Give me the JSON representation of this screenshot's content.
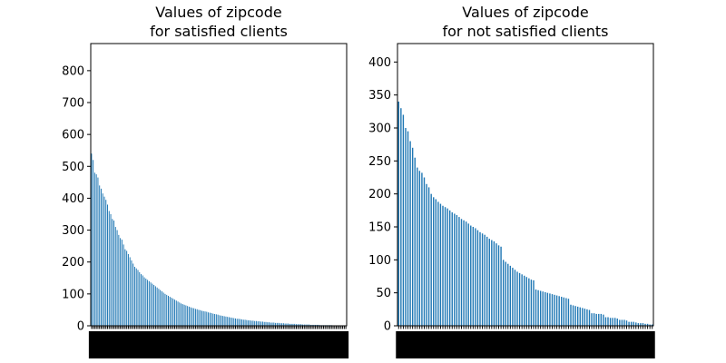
{
  "chart_data": [
    {
      "type": "bar",
      "title_line1": "Values of zipcode",
      "title_line2": "for satisfied clients",
      "ylim": [
        0,
        885
      ],
      "yticks": [
        0,
        100,
        200,
        300,
        400,
        500,
        600,
        700,
        800
      ],
      "ytick_labels": [
        "0",
        "100",
        "200",
        "300",
        "400",
        "500",
        "600",
        "700",
        "800"
      ],
      "xlabel": "",
      "ylabel": "",
      "grid": false,
      "legend": "none",
      "bar_color": "#1f77b4",
      "category_labels_legible": false,
      "categories_count": 160,
      "values": [
        540,
        520,
        480,
        475,
        465,
        440,
        430,
        415,
        405,
        395,
        380,
        360,
        350,
        335,
        330,
        310,
        300,
        285,
        275,
        270,
        255,
        240,
        235,
        225,
        215,
        205,
        195,
        185,
        180,
        175,
        168,
        162,
        158,
        152,
        148,
        144,
        140,
        136,
        132,
        128,
        124,
        120,
        116,
        112,
        108,
        104,
        100,
        97,
        94,
        91,
        88,
        85,
        82,
        79,
        76,
        73,
        70,
        68,
        66,
        64,
        62,
        60,
        58,
        56,
        55,
        53,
        52,
        50,
        49,
        47,
        46,
        45,
        44,
        42,
        41,
        40,
        38,
        37,
        36,
        35,
        33,
        32,
        31,
        30,
        29,
        28,
        27,
        26,
        25,
        24,
        23,
        22,
        22,
        21,
        20,
        19,
        19,
        18,
        17,
        17,
        16,
        16,
        15,
        15,
        14,
        14,
        13,
        13,
        12,
        12,
        11,
        11,
        10,
        10,
        10,
        9,
        9,
        9,
        8,
        8,
        8,
        7,
        7,
        7,
        6,
        6,
        6,
        6,
        5,
        5,
        5,
        5,
        4,
        4,
        4,
        4,
        4,
        3,
        3,
        3,
        3,
        3,
        3,
        2,
        2,
        2,
        2,
        2,
        2,
        2,
        2,
        1,
        1,
        1,
        1,
        1,
        1,
        1,
        1,
        1
      ]
    },
    {
      "type": "bar",
      "title_line1": "Values of zipcode",
      "title_line2": "for not satisfied clients",
      "ylim": [
        0,
        428
      ],
      "yticks": [
        0,
        50,
        100,
        150,
        200,
        250,
        300,
        350,
        400
      ],
      "ytick_labels": [
        "0",
        "50",
        "100",
        "150",
        "200",
        "250",
        "300",
        "350",
        "400"
      ],
      "xlabel": "",
      "ylabel": "",
      "grid": false,
      "legend": "none",
      "bar_color": "#1f77b4",
      "category_labels_legible": false,
      "categories_count": 110,
      "values": [
        340,
        330,
        320,
        300,
        295,
        280,
        270,
        255,
        240,
        235,
        232,
        225,
        215,
        210,
        200,
        195,
        192,
        188,
        185,
        182,
        180,
        178,
        175,
        172,
        170,
        168,
        165,
        162,
        160,
        158,
        155,
        152,
        150,
        148,
        145,
        142,
        140,
        138,
        135,
        132,
        130,
        128,
        125,
        122,
        120,
        100,
        97,
        94,
        91,
        88,
        85,
        82,
        80,
        78,
        76,
        74,
        72,
        70,
        69,
        55,
        54,
        53,
        52,
        51,
        50,
        49,
        48,
        47,
        46,
        45,
        44,
        43,
        42,
        41,
        32,
        31,
        30,
        29,
        28,
        27,
        26,
        25,
        24,
        19,
        19,
        18,
        18,
        18,
        17,
        13,
        13,
        12,
        12,
        12,
        11,
        9,
        9,
        9,
        8,
        6,
        6,
        6,
        5,
        4,
        4,
        4,
        3,
        3,
        2,
        2
      ]
    }
  ]
}
